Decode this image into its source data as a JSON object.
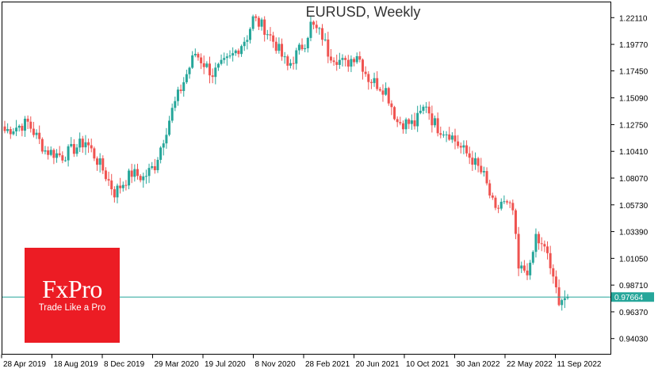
{
  "chart_data": {
    "type": "candlestick",
    "title": "EURUSD, Weekly",
    "y_ticks": [
      1.2211,
      1.1977,
      1.1745,
      1.1509,
      1.1275,
      1.1041,
      1.0807,
      1.0573,
      1.0339,
      1.0105,
      0.9871,
      0.9637,
      0.9403
    ],
    "y_tick_labels": [
      "1.22110",
      "1.19770",
      "1.17450",
      "1.15090",
      "1.12750",
      "1.10410",
      "1.08070",
      "1.05730",
      "1.03390",
      "1.01050",
      "0.98710",
      "0.96370",
      "0.94030"
    ],
    "ylim": [
      0.9266,
      1.2348
    ],
    "x_labels": [
      "28 Apr 2019",
      "18 Aug 2019",
      "8 Dec 2019",
      "29 Mar 2020",
      "19 Jul 2020",
      "8 Nov 2020",
      "28 Feb 2021",
      "20 Jun 2021",
      "10 Oct 2021",
      "30 Jan 2022",
      "22 May 2022",
      "11 Sep 2022"
    ],
    "current_price": 0.97664,
    "current_price_label": "0.97664",
    "colors": {
      "up": "#26a69a",
      "down": "#ef5350",
      "price_line": "#26a69a",
      "axis": "#000000"
    },
    "close_path": [
      [
        0,
        1.122
      ],
      [
        8,
        1.129
      ],
      [
        14,
        1.105
      ],
      [
        20,
        1.1
      ],
      [
        28,
        1.113
      ],
      [
        34,
        1.088
      ],
      [
        38,
        1.068
      ],
      [
        44,
        1.085
      ],
      [
        48,
        1.081
      ],
      [
        52,
        1.092
      ],
      [
        58,
        1.14
      ],
      [
        64,
        1.178
      ],
      [
        66,
        1.19
      ],
      [
        72,
        1.172
      ],
      [
        78,
        1.185
      ],
      [
        84,
        1.205
      ],
      [
        86,
        1.22
      ],
      [
        90,
        1.212
      ],
      [
        94,
        1.197
      ],
      [
        98,
        1.178
      ],
      [
        104,
        1.2
      ],
      [
        106,
        1.215
      ],
      [
        110,
        1.205
      ],
      [
        112,
        1.191
      ],
      [
        118,
        1.18
      ],
      [
        122,
        1.19
      ],
      [
        126,
        1.168
      ],
      [
        132,
        1.158
      ],
      [
        136,
        1.13
      ],
      [
        142,
        1.128
      ],
      [
        146,
        1.146
      ],
      [
        148,
        1.132
      ],
      [
        150,
        1.125
      ],
      [
        154,
        1.12
      ],
      [
        158,
        1.107
      ],
      [
        162,
        1.097
      ],
      [
        166,
        1.082
      ],
      [
        170,
        1.05
      ],
      [
        172,
        1.06
      ],
      [
        176,
        1.052
      ],
      [
        178,
        1.0
      ],
      [
        182,
        1.001
      ],
      [
        184,
        1.03
      ],
      [
        186,
        1.02
      ],
      [
        188,
        1.015
      ],
      [
        190,
        0.99
      ],
      [
        192,
        0.975
      ],
      [
        195,
        0.9766
      ]
    ]
  },
  "logo": {
    "name": "FxPro",
    "tagline": "Trade Like a Pro"
  }
}
